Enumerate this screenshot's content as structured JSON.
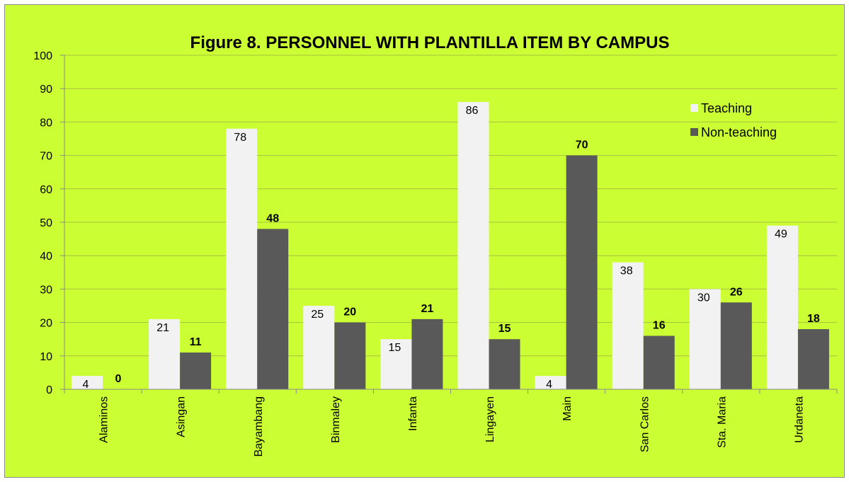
{
  "chart_data": {
    "type": "bar",
    "title": "Figure 8. PERSONNEL WITH PLANTILLA ITEM BY CAMPUS",
    "xlabel": "",
    "ylabel": "",
    "categories": [
      "Alaminos",
      "Asingan",
      "Bayambang",
      "Binmaley",
      "Infanta",
      "Lingayen",
      "Main",
      "San Carlos",
      "Sta. Maria",
      "Urdaneta"
    ],
    "series": [
      {
        "name": "Teaching",
        "values": [
          4,
          21,
          78,
          25,
          15,
          86,
          4,
          38,
          30,
          49
        ],
        "color": "#f2f2f2"
      },
      {
        "name": "Non-teaching",
        "values": [
          0,
          11,
          48,
          20,
          21,
          15,
          70,
          16,
          26,
          18
        ],
        "color": "#595959"
      }
    ],
    "ylim": [
      0,
      100
    ],
    "yticks": [
      0,
      10,
      20,
      30,
      40,
      50,
      60,
      70,
      80,
      90,
      100
    ],
    "grid": true,
    "legend": "top-right",
    "background": "#ccff33",
    "gridline_color": "#a6bf3f"
  }
}
